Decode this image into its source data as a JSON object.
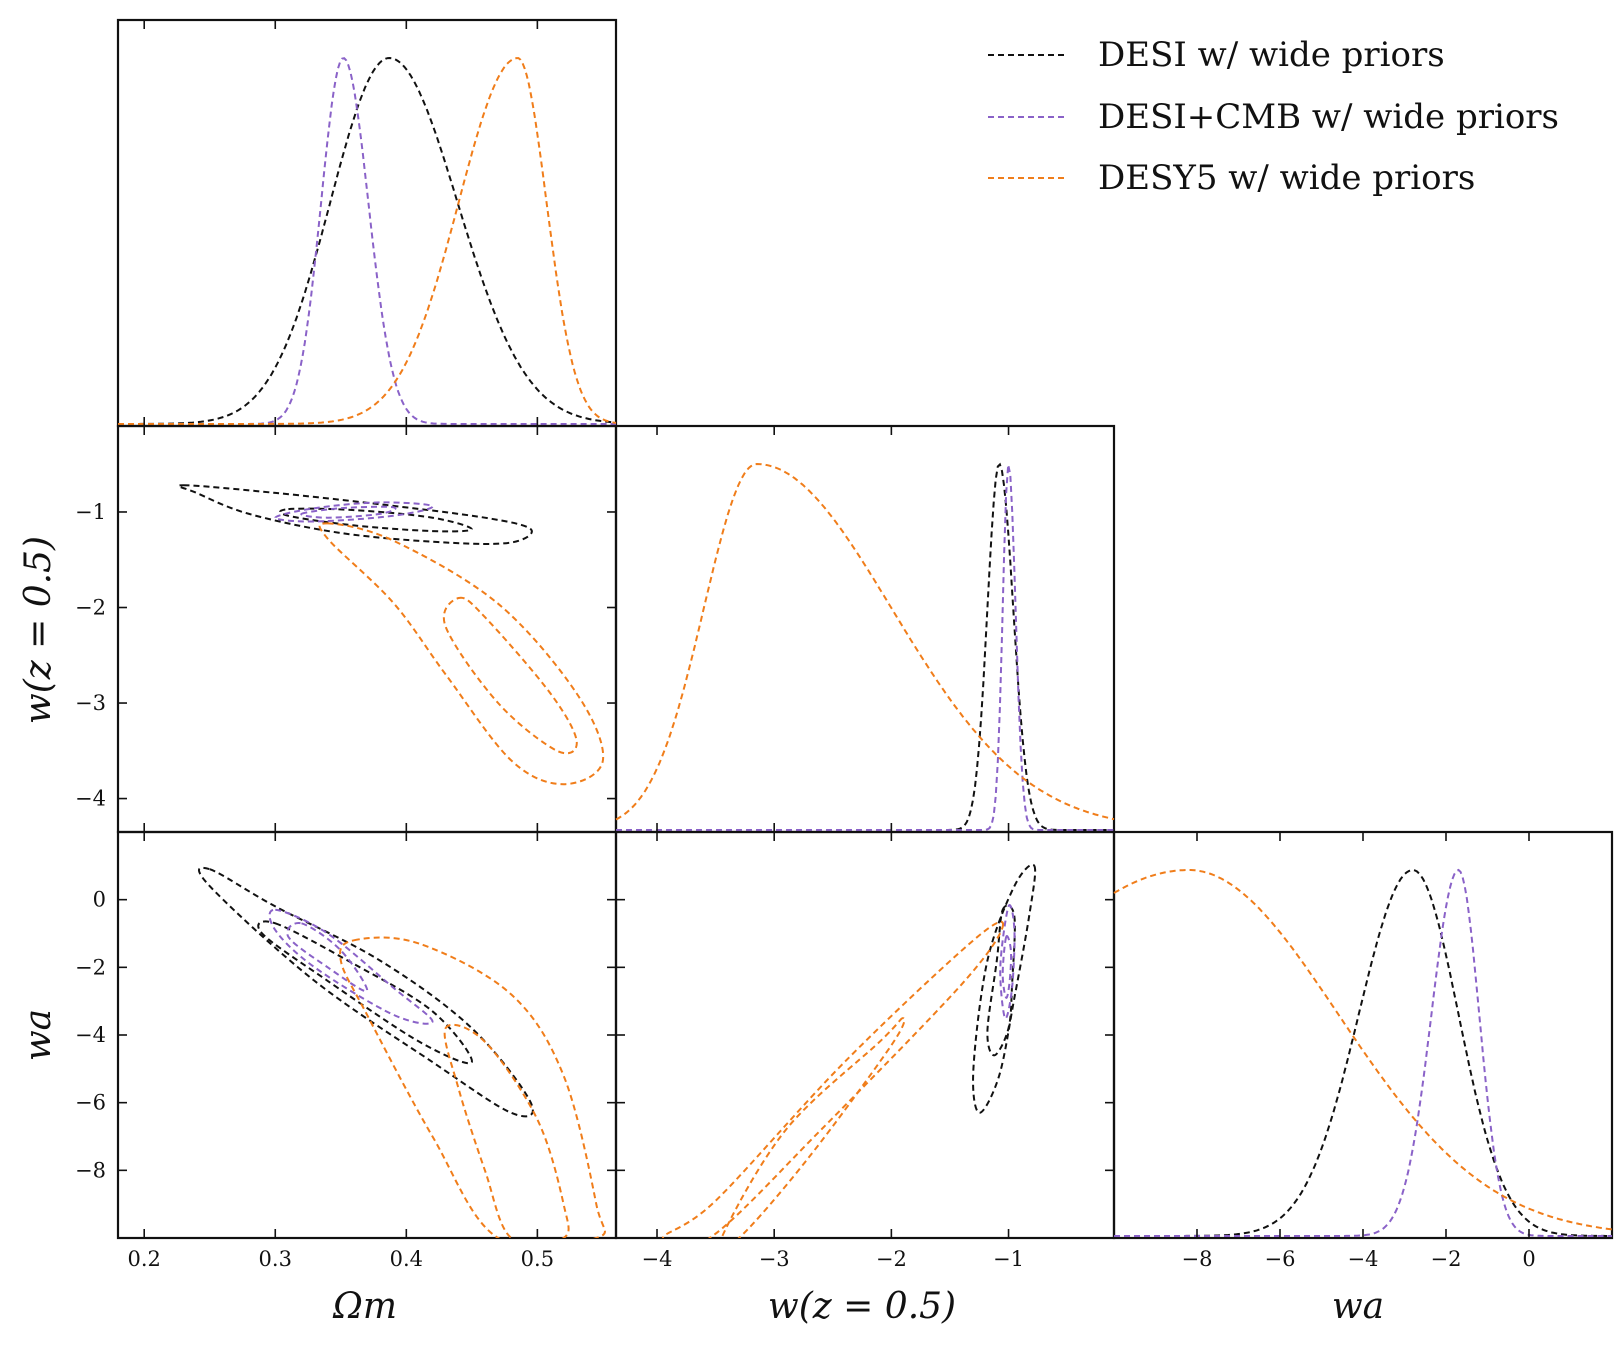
{
  "chart_data": {
    "type": "corner",
    "colors": {
      "DESI w/ wide priors": "#111111",
      "DESI+CMB w/ wide priors": "#8a62c8",
      "DESY5 w/ wide priors": "#f07d1a"
    },
    "legend": {
      "placement": "top-right",
      "entries": [
        {
          "label": "DESI w/ wide priors",
          "color": "#111111",
          "style": "dashed"
        },
        {
          "label": "DESI+CMB w/ wide priors",
          "color": "#8a62c8",
          "style": "dashed"
        },
        {
          "label": "DESY5 w/ wide priors",
          "color": "#f07d1a",
          "style": "dashed"
        }
      ]
    },
    "parameters": [
      {
        "key": "om",
        "label": "Ωm",
        "range": [
          0.18,
          0.56
        ],
        "ticks": [
          0.2,
          0.3,
          0.4,
          0.5
        ],
        "tick_labels": [
          "0.2",
          "0.3",
          "0.4",
          "0.5"
        ]
      },
      {
        "key": "w05",
        "label": "w(z = 0.5)",
        "range": [
          -4.35,
          -0.1
        ],
        "ticks": [
          -4,
          -3,
          -2,
          -1
        ],
        "tick_labels": [
          "−4",
          "−3",
          "−2",
          "−1"
        ]
      },
      {
        "key": "wa",
        "label": "wa",
        "range": [
          -10,
          2
        ],
        "ticks": [
          -8,
          -6,
          -4,
          -2,
          0
        ],
        "tick_labels": [
          "−8",
          "−6",
          "−4",
          "−2",
          "0"
        ]
      }
    ],
    "marginals": {
      "om": [
        {
          "series": "DESI w/ wide priors",
          "peak": 0.387,
          "sigma_left": 0.045,
          "sigma_right": 0.052
        },
        {
          "series": "DESI+CMB w/ wide priors",
          "peak": 0.352,
          "sigma_left": 0.017,
          "sigma_right": 0.019
        },
        {
          "series": "DESY5 w/ wide priors",
          "peak": 0.485,
          "sigma_left": 0.045,
          "sigma_right": 0.022
        }
      ],
      "w05": [
        {
          "series": "DESI w/ wide priors",
          "peak": -1.08,
          "sigma_left": 0.1,
          "sigma_right": 0.12
        },
        {
          "series": "DESI+CMB w/ wide priors",
          "peak": -1.0,
          "sigma_left": 0.05,
          "sigma_right": 0.06
        },
        {
          "series": "DESY5 w/ wide priors",
          "peak": -3.15,
          "sigma_left": 0.45,
          "sigma_right": 1.15
        }
      ],
      "wa": [
        {
          "series": "DESI w/ wide priors",
          "peak": -2.8,
          "sigma_left": 1.3,
          "sigma_right": 1.1
        },
        {
          "series": "DESI+CMB w/ wide priors",
          "peak": -1.7,
          "sigma_left": 0.65,
          "sigma_right": 0.5
        },
        {
          "series": "DESY5 w/ wide priors",
          "peak": -8.2,
          "sigma_left": 5.0,
          "sigma_right": 3.6
        }
      ]
    },
    "contours": {
      "w05_vs_om": [
        {
          "series": "DESI w/ wide priors",
          "level": "68%",
          "points": [
            [
              0.31,
              -0.97
            ],
            [
              0.36,
              -0.98
            ],
            [
              0.42,
              -1.06
            ],
            [
              0.45,
              -1.18
            ],
            [
              0.42,
              -1.2
            ],
            [
              0.36,
              -1.14
            ],
            [
              0.31,
              -1.04
            ]
          ]
        },
        {
          "series": "DESI w/ wide priors",
          "level": "95%",
          "points": [
            [
              0.23,
              -0.72
            ],
            [
              0.3,
              -0.8
            ],
            [
              0.38,
              -0.92
            ],
            [
              0.46,
              -1.06
            ],
            [
              0.495,
              -1.18
            ],
            [
              0.48,
              -1.32
            ],
            [
              0.43,
              -1.32
            ],
            [
              0.35,
              -1.22
            ],
            [
              0.28,
              -1.02
            ],
            [
              0.24,
              -0.8
            ]
          ]
        },
        {
          "series": "DESI+CMB w/ wide priors",
          "level": "68%",
          "points": [
            [
              0.32,
              -1.02
            ],
            [
              0.35,
              -0.96
            ],
            [
              0.39,
              -0.95
            ],
            [
              0.38,
              -1.02
            ],
            [
              0.34,
              -1.06
            ]
          ]
        },
        {
          "series": "DESI+CMB w/ wide priors",
          "level": "95%",
          "points": [
            [
              0.3,
              -1.06
            ],
            [
              0.33,
              -0.96
            ],
            [
              0.38,
              -0.9
            ],
            [
              0.42,
              -0.94
            ],
            [
              0.39,
              -1.04
            ],
            [
              0.33,
              -1.1
            ]
          ]
        },
        {
          "series": "DESY5 w/ wide priors",
          "level": "68%",
          "points": [
            [
              0.44,
              -1.9
            ],
            [
              0.46,
              -2.1
            ],
            [
              0.51,
              -2.9
            ],
            [
              0.53,
              -3.4
            ],
            [
              0.515,
              -3.5
            ],
            [
              0.47,
              -3.0
            ],
            [
              0.43,
              -2.2
            ]
          ]
        },
        {
          "series": "DESY5 w/ wide priors",
          "level": "95%",
          "points": [
            [
              0.34,
              -1.12
            ],
            [
              0.39,
              -1.3
            ],
            [
              0.47,
              -1.96
            ],
            [
              0.53,
              -2.9
            ],
            [
              0.55,
              -3.6
            ],
            [
              0.52,
              -3.85
            ],
            [
              0.48,
              -3.6
            ],
            [
              0.43,
              -2.7
            ],
            [
              0.39,
              -1.95
            ],
            [
              0.34,
              -1.28
            ]
          ]
        }
      ],
      "wa_vs_om": [
        {
          "series": "DESI w/ wide priors",
          "level": "68%",
          "points": [
            [
              0.3,
              -0.7
            ],
            [
              0.36,
              -1.9
            ],
            [
              0.42,
              -3.3
            ],
            [
              0.45,
              -4.8
            ],
            [
              0.41,
              -4.2
            ],
            [
              0.34,
              -2.4
            ],
            [
              0.29,
              -1.0
            ]
          ]
        },
        {
          "series": "DESI w/ wide priors",
          "level": "95%",
          "points": [
            [
              0.25,
              0.9
            ],
            [
              0.3,
              -0.2
            ],
            [
              0.38,
              -1.8
            ],
            [
              0.45,
              -3.8
            ],
            [
              0.495,
              -6.0
            ],
            [
              0.48,
              -6.3
            ],
            [
              0.42,
              -4.8
            ],
            [
              0.33,
              -2.4
            ],
            [
              0.25,
              0.4
            ]
          ]
        },
        {
          "series": "DESI+CMB w/ wide priors",
          "level": "68%",
          "points": [
            [
              0.32,
              -0.7
            ],
            [
              0.35,
              -1.5
            ],
            [
              0.37,
              -2.7
            ],
            [
              0.34,
              -2.0
            ],
            [
              0.31,
              -1.1
            ]
          ]
        },
        {
          "series": "DESI+CMB w/ wide priors",
          "level": "95%",
          "points": [
            [
              0.3,
              -0.3
            ],
            [
              0.34,
              -1.0
            ],
            [
              0.39,
              -2.6
            ],
            [
              0.42,
              -3.6
            ],
            [
              0.39,
              -3.4
            ],
            [
              0.33,
              -2.0
            ],
            [
              0.3,
              -0.9
            ]
          ]
        },
        {
          "series": "DESY5 w/ wide priors",
          "level": "68%",
          "points": [
            [
              0.43,
              -3.8
            ],
            [
              0.46,
              -4.2
            ],
            [
              0.5,
              -6.5
            ],
            [
              0.52,
              -9.0
            ],
            [
              0.52,
              -10
            ],
            [
              0.48,
              -10
            ],
            [
              0.46,
              -8.0
            ],
            [
              0.44,
              -5.6
            ]
          ]
        },
        {
          "series": "DESY5 w/ wide priors",
          "level": "95%",
          "points": [
            [
              0.36,
              -1.2
            ],
            [
              0.41,
              -1.3
            ],
            [
              0.48,
              -2.8
            ],
            [
              0.52,
              -5.2
            ],
            [
              0.545,
              -9.0
            ],
            [
              0.545,
              -10
            ],
            [
              0.47,
              -10
            ],
            [
              0.42,
              -7.0
            ],
            [
              0.37,
              -3.4
            ],
            [
              0.35,
              -1.8
            ]
          ]
        }
      ],
      "wa_vs_w05": [
        {
          "series": "DESI w/ wide priors",
          "level": "68%",
          "points": [
            [
              -1.05,
              -0.3
            ],
            [
              -0.95,
              -0.5
            ],
            [
              -0.97,
              -2.5
            ],
            [
              -1.0,
              -3.8
            ],
            [
              -1.12,
              -4.6
            ],
            [
              -1.18,
              -3.9
            ],
            [
              -1.1,
              -1.8
            ]
          ]
        },
        {
          "series": "DESI w/ wide priors",
          "level": "95%",
          "points": [
            [
              -0.78,
              1.0
            ],
            [
              -0.82,
              -0.4
            ],
            [
              -0.95,
              -2.9
            ],
            [
              -1.08,
              -5.2
            ],
            [
              -1.25,
              -6.3
            ],
            [
              -1.3,
              -5.0
            ],
            [
              -1.18,
              -1.8
            ],
            [
              -0.95,
              0.4
            ]
          ]
        },
        {
          "series": "DESI+CMB w/ wide priors",
          "level": "68%",
          "points": [
            [
              -1.02,
              -1.1
            ],
            [
              -0.98,
              -1.5
            ],
            [
              -0.99,
              -2.4
            ],
            [
              -1.02,
              -2.9
            ],
            [
              -1.05,
              -2.2
            ]
          ]
        },
        {
          "series": "DESI+CMB w/ wide priors",
          "level": "95%",
          "points": [
            [
              -1.0,
              -0.2
            ],
            [
              -0.95,
              -0.9
            ],
            [
              -0.97,
              -2.6
            ],
            [
              -1.03,
              -3.5
            ],
            [
              -1.07,
              -2.0
            ]
          ]
        },
        {
          "series": "DESY5 w/ wide priors",
          "level": "68%",
          "points": [
            [
              -1.9,
              -3.5
            ],
            [
              -2.1,
              -4.2
            ],
            [
              -2.9,
              -6.8
            ],
            [
              -3.45,
              -10
            ],
            [
              -3.3,
              -10
            ],
            [
              -2.7,
              -7.6
            ],
            [
              -2.0,
              -4.3
            ]
          ]
        },
        {
          "series": "DESY5 w/ wide priors",
          "level": "95%",
          "points": [
            [
              -1.05,
              -0.8
            ],
            [
              -1.3,
              -1.2
            ],
            [
              -2.4,
              -4.8
            ],
            [
              -3.5,
              -8.9
            ],
            [
              -3.95,
              -10
            ],
            [
              -3.55,
              -10
            ],
            [
              -2.6,
              -6.8
            ],
            [
              -1.4,
              -2.5
            ]
          ]
        }
      ]
    }
  }
}
